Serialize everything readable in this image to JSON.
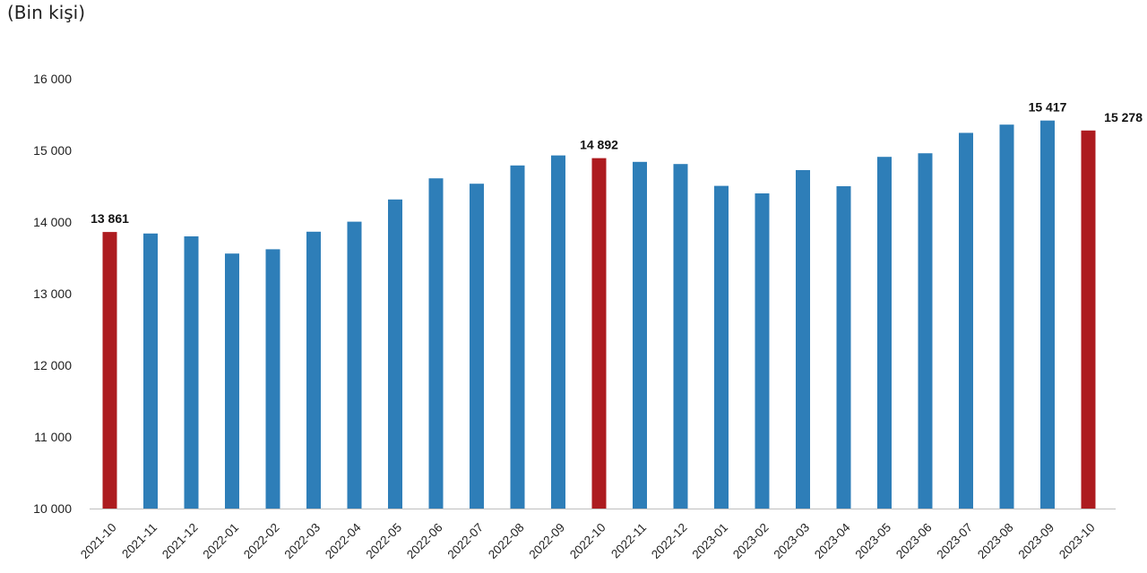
{
  "unit_label": "(Bin kişi)",
  "colors": {
    "regular": "#2e7eb8",
    "highlight": "#ad1b1f",
    "axis": "#bfbfbf"
  },
  "chart_data": {
    "type": "bar",
    "ylim": [
      10000,
      16000
    ],
    "yticks": [
      10000,
      11000,
      12000,
      13000,
      14000,
      15000,
      16000
    ],
    "ytick_labels": [
      "10 000",
      "11 000",
      "12 000",
      "13 000",
      "14 000",
      "15 000",
      "16 000"
    ],
    "grid": false,
    "categories": [
      "2021-10",
      "2021-11",
      "2021-12",
      "2022-01",
      "2022-02",
      "2022-03",
      "2022-04",
      "2022-05",
      "2022-06",
      "2022-07",
      "2022-08",
      "2022-09",
      "2022-10",
      "2022-11",
      "2022-12",
      "2023-01",
      "2023-02",
      "2023-03",
      "2023-04",
      "2023-05",
      "2023-06",
      "2023-07",
      "2023-08",
      "2023-09",
      "2023-10"
    ],
    "values": [
      13861,
      13840,
      13800,
      13560,
      13620,
      13865,
      14005,
      14315,
      14610,
      14535,
      14790,
      14930,
      14892,
      14840,
      14810,
      14505,
      14400,
      14725,
      14500,
      14910,
      14960,
      15245,
      15360,
      15417,
      15278
    ],
    "highlight_indices": [
      0,
      12,
      24
    ],
    "data_labels": [
      {
        "index": 0,
        "text": "13 861"
      },
      {
        "index": 12,
        "text": "14 892"
      },
      {
        "index": 23,
        "text": "15 417"
      },
      {
        "index": 24,
        "text": "15 278"
      }
    ]
  }
}
